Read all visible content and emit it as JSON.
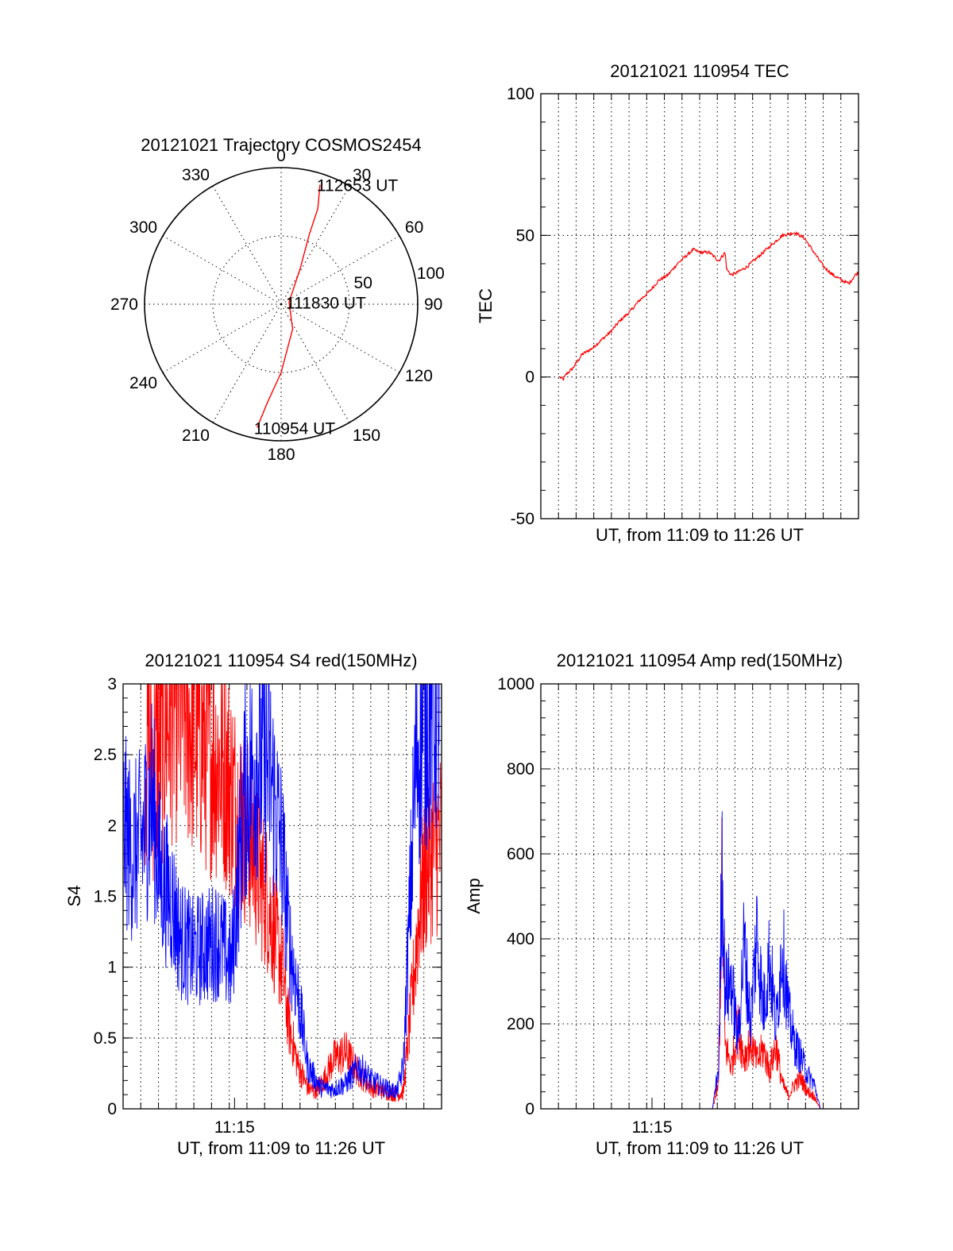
{
  "colors": {
    "red": "#ff0000",
    "blue": "#0000ff",
    "axis": "#000000"
  },
  "chart_data": [
    {
      "id": "trajectory",
      "type": "polar",
      "title": "20121021 Trajectory COSMOS2454",
      "angle_labels": [
        "0",
        "30",
        "60",
        "90",
        "120",
        "150",
        "180",
        "210",
        "240",
        "270",
        "300",
        "330"
      ],
      "radial_labels": [
        "50",
        "100"
      ],
      "rlim": [
        0,
        100
      ],
      "grid": true,
      "series": [
        {
          "color": "#ff0000",
          "points": [
            {
              "az": 191,
              "elev_offset": 92
            },
            {
              "az": 188,
              "elev_offset": 73
            },
            {
              "az": 180,
              "elev_offset": 50
            },
            {
              "az": 155,
              "elev_offset": 20
            },
            {
              "az": 75,
              "elev_offset": 6
            },
            {
              "az": 28,
              "elev_offset": 30
            },
            {
              "az": 22,
              "elev_offset": 55
            },
            {
              "az": 21,
              "elev_offset": 75
            },
            {
              "az": 18,
              "elev_offset": 92
            }
          ]
        }
      ],
      "annotations": [
        {
          "text": "112653 UT",
          "az": 18,
          "r": 92
        },
        {
          "text": "111830 UT",
          "az": 75,
          "r": 6
        },
        {
          "text": "110954 UT",
          "az": 191,
          "r": 92
        }
      ]
    },
    {
      "id": "tec",
      "type": "line",
      "title": "20121021 110954 TEC",
      "xlabel": "UT, from 11:09 to 11:26 UT",
      "ylabel": "TEC",
      "xlim": [
        0,
        1
      ],
      "ylim": [
        -50,
        100
      ],
      "yticks": [
        -50,
        0,
        50,
        100
      ],
      "xticks": [],
      "grid": true,
      "series": [
        {
          "color": "#ff0000",
          "x": [
            0.06,
            0.07,
            0.08,
            0.1,
            0.13,
            0.16,
            0.19,
            0.22,
            0.25,
            0.28,
            0.31,
            0.34,
            0.37,
            0.4,
            0.43,
            0.46,
            0.48,
            0.5,
            0.53,
            0.56,
            0.58,
            0.585,
            0.6,
            0.62,
            0.65,
            0.68,
            0.72,
            0.76,
            0.8,
            0.83,
            0.86,
            0.89,
            0.92,
            0.95,
            0.97,
            0.99,
            1.0
          ],
          "y": [
            0,
            -1,
            1,
            3,
            8,
            10,
            13,
            16,
            20,
            23,
            27,
            30,
            34,
            36,
            40,
            43,
            45,
            44,
            44,
            41,
            44,
            38,
            36,
            37,
            39,
            42,
            46,
            50,
            51,
            49,
            44,
            39,
            36,
            34,
            33,
            36,
            37
          ]
        }
      ]
    },
    {
      "id": "s4",
      "type": "line",
      "title": "20121021 110954 S4 red(150MHz)",
      "xlabel": "UT, from 11:09 to 11:26 UT",
      "ylabel": "S4",
      "xlim": [
        0,
        1
      ],
      "ylim": [
        0,
        3
      ],
      "yticks": [
        "0",
        "0.5",
        "1",
        "1.5",
        "2",
        "2.5",
        "3"
      ],
      "xticks": [
        {
          "x": 0.35,
          "label": "11:15"
        }
      ],
      "grid": true,
      "series": [
        {
          "color": "#ff0000",
          "x": [
            0.07,
            0.1,
            0.13,
            0.16,
            0.2,
            0.24,
            0.28,
            0.32,
            0.36,
            0.4,
            0.42,
            0.45,
            0.47,
            0.5,
            0.52,
            0.55,
            0.58,
            0.6,
            0.63,
            0.66,
            0.7,
            0.74,
            0.78,
            0.82,
            0.86,
            0.88,
            0.9,
            0.93,
            0.96,
            1.0
          ],
          "y": [
            2.6,
            2.4,
            2.7,
            2.9,
            2.8,
            2.6,
            2.5,
            2.4,
            2.1,
            1.9,
            1.7,
            1.5,
            1.3,
            1.0,
            0.6,
            0.3,
            0.15,
            0.12,
            0.2,
            0.35,
            0.4,
            0.25,
            0.15,
            0.12,
            0.1,
            0.12,
            0.6,
            1.4,
            1.8,
            1.9
          ]
        },
        {
          "color": "#0000ff",
          "x": [
            0.0,
            0.03,
            0.06,
            0.09,
            0.12,
            0.15,
            0.18,
            0.22,
            0.26,
            0.3,
            0.34,
            0.38,
            0.42,
            0.46,
            0.5,
            0.52,
            0.55,
            0.58,
            0.62,
            0.66,
            0.7,
            0.74,
            0.78,
            0.82,
            0.86,
            0.88,
            0.9,
            0.92,
            0.95,
            1.0
          ],
          "y": [
            2.0,
            1.8,
            1.9,
            2.2,
            1.6,
            1.5,
            1.2,
            1.1,
            1.15,
            1.2,
            1.0,
            2.2,
            2.5,
            2.4,
            1.8,
            1.2,
            0.8,
            0.3,
            0.15,
            0.14,
            0.18,
            0.3,
            0.2,
            0.15,
            0.12,
            0.3,
            1.4,
            2.5,
            2.8,
            2.9
          ]
        }
      ]
    },
    {
      "id": "amp",
      "type": "line",
      "title": "20121021 110954 Amp red(150MHz)",
      "xlabel": "UT, from 11:09 to 11:26 UT",
      "ylabel": "Amp",
      "xlim": [
        0,
        1
      ],
      "ylim": [
        0,
        1000
      ],
      "yticks": [
        0,
        200,
        400,
        600,
        800,
        1000
      ],
      "xticks": [
        {
          "x": 0.35,
          "label": "11:15"
        }
      ],
      "grid": true,
      "series": [
        {
          "color": "#ff0000",
          "x": [
            0.06,
            0.5,
            0.54,
            0.56,
            0.57,
            0.58,
            0.6,
            0.62,
            0.64,
            0.66,
            0.68,
            0.7,
            0.72,
            0.74,
            0.76,
            0.78,
            0.8,
            0.82,
            0.84,
            0.86,
            0.88,
            1.0
          ],
          "y": [
            0,
            0,
            0,
            60,
            530,
            150,
            100,
            190,
            120,
            160,
            110,
            140,
            90,
            150,
            60,
            30,
            60,
            70,
            40,
            30,
            0,
            0
          ]
        },
        {
          "color": "#0000ff",
          "x": [
            0.06,
            0.5,
            0.54,
            0.56,
            0.57,
            0.58,
            0.6,
            0.62,
            0.64,
            0.66,
            0.68,
            0.7,
            0.72,
            0.74,
            0.76,
            0.78,
            0.8,
            0.82,
            0.84,
            0.86,
            0.88,
            1.0
          ],
          "y": [
            0,
            0,
            0,
            100,
            600,
            280,
            300,
            160,
            390,
            200,
            420,
            230,
            360,
            190,
            390,
            220,
            150,
            120,
            80,
            60,
            0,
            0
          ]
        }
      ]
    }
  ]
}
